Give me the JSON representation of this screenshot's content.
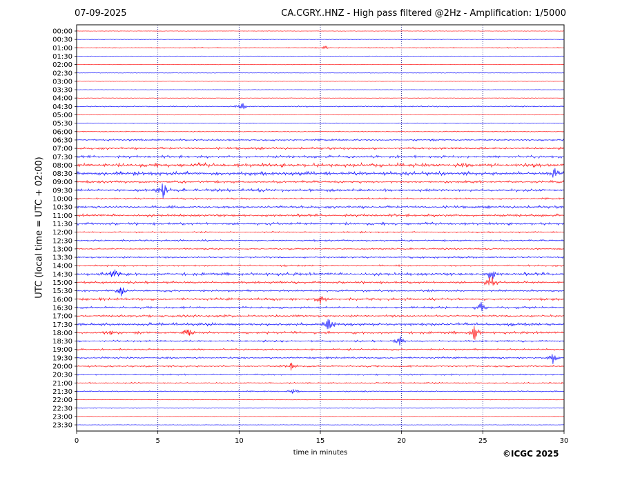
{
  "header": {
    "date": "07-09-2025",
    "title": "CA.CGRY..HNZ - High pass filtered @2Hz - Amplification: 1/5000"
  },
  "footer": {
    "copyright": "©ICGC 2025"
  },
  "chart_data": {
    "type": "line",
    "xlabel": "time in minutes",
    "ylabel": "UTC (local time = UTC + 02:00)",
    "xlim": [
      0,
      30
    ],
    "x_ticks": [
      0,
      5,
      10,
      15,
      20,
      25,
      30
    ],
    "x_tick_labels": [
      "0",
      "5",
      "10",
      "15",
      "20",
      "25",
      "30"
    ],
    "vertical_gridlines_at": [
      5,
      10,
      15,
      20,
      25
    ],
    "trace_colors": [
      "#ff0000",
      "#0000ff"
    ],
    "rows": [
      "00:00",
      "00:30",
      "01:00",
      "01:30",
      "02:00",
      "02:30",
      "03:00",
      "03:30",
      "04:00",
      "04:30",
      "05:00",
      "05:30",
      "06:00",
      "06:30",
      "07:00",
      "07:30",
      "08:00",
      "08:30",
      "09:00",
      "09:30",
      "10:00",
      "10:30",
      "11:00",
      "11:30",
      "12:00",
      "12:30",
      "13:00",
      "13:30",
      "14:00",
      "14:30",
      "15:00",
      "15:30",
      "16:00",
      "16:30",
      "17:00",
      "17:30",
      "18:00",
      "18:30",
      "19:00",
      "19:30",
      "20:00",
      "20:30",
      "21:00",
      "21:30",
      "22:00",
      "22:30",
      "23:00",
      "23:30"
    ],
    "activity": [
      0.02,
      0.03,
      0.15,
      0.02,
      0.02,
      0.02,
      0.02,
      0.03,
      0.03,
      0.2,
      0.03,
      0.08,
      0.15,
      0.35,
      0.45,
      0.55,
      0.85,
      0.8,
      0.5,
      0.6,
      0.3,
      0.5,
      0.55,
      0.55,
      0.25,
      0.35,
      0.3,
      0.35,
      0.3,
      0.6,
      0.5,
      0.4,
      0.5,
      0.45,
      0.45,
      0.6,
      0.5,
      0.35,
      0.35,
      0.35,
      0.35,
      0.25,
      0.25,
      0.2,
      0.05,
      0.05,
      0.03,
      0.03
    ],
    "events": [
      {
        "row": "01:00",
        "minute": 15.3,
        "amp": 0.2
      },
      {
        "row": "04:30",
        "minute": 10.2,
        "amp": 0.4
      },
      {
        "row": "08:30",
        "minute": 29.4,
        "amp": 0.8
      },
      {
        "row": "09:30",
        "minute": 5.3,
        "amp": 0.9
      },
      {
        "row": "14:30",
        "minute": 2.3,
        "amp": 1.0
      },
      {
        "row": "14:30",
        "minute": 25.5,
        "amp": 0.8
      },
      {
        "row": "15:00",
        "minute": 25.5,
        "amp": 1.0
      },
      {
        "row": "15:30",
        "minute": 2.7,
        "amp": 0.6
      },
      {
        "row": "16:00",
        "minute": 15.0,
        "amp": 0.5
      },
      {
        "row": "16:30",
        "minute": 24.9,
        "amp": 0.6
      },
      {
        "row": "17:30",
        "minute": 15.5,
        "amp": 0.7
      },
      {
        "row": "18:00",
        "minute": 2.0,
        "amp": 0.6
      },
      {
        "row": "18:00",
        "minute": 6.8,
        "amp": 0.6
      },
      {
        "row": "18:00",
        "minute": 24.5,
        "amp": 0.9
      },
      {
        "row": "18:30",
        "minute": 19.9,
        "amp": 0.5
      },
      {
        "row": "19:30",
        "minute": 29.3,
        "amp": 0.6
      },
      {
        "row": "20:00",
        "minute": 13.2,
        "amp": 0.4
      },
      {
        "row": "21:30",
        "minute": 13.4,
        "amp": 0.4
      }
    ]
  }
}
